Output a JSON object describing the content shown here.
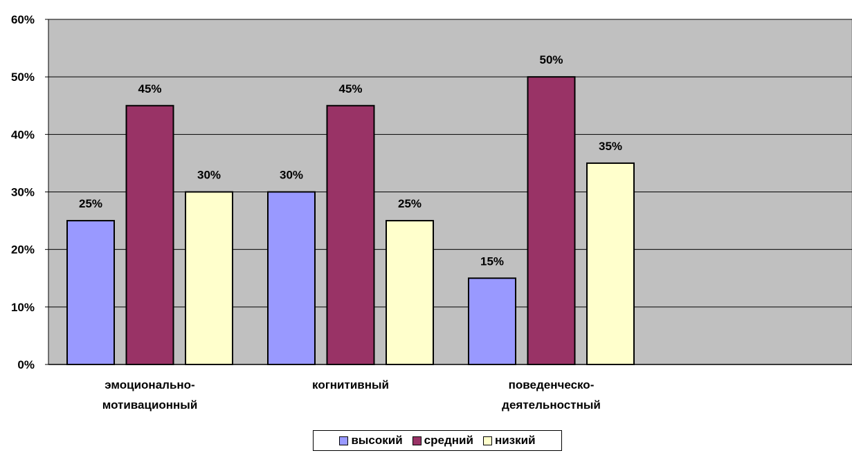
{
  "chart_data": {
    "type": "bar",
    "categories": [
      [
        "эмоционально-",
        "мотивационный"
      ],
      [
        "когнитивный"
      ],
      [
        "поведенческо-",
        "деятельностный"
      ]
    ],
    "series": [
      {
        "name": "высокий",
        "values": [
          25,
          30,
          15
        ],
        "color": "#9999ff"
      },
      {
        "name": "средний",
        "values": [
          45,
          45,
          50
        ],
        "color": "#993366"
      },
      {
        "name": "низкий",
        "values": [
          30,
          25,
          35
        ],
        "color": "#ffffcc"
      }
    ],
    "ylim": [
      0,
      60
    ],
    "yticks": [
      "0%",
      "10%",
      "20%",
      "30%",
      "40%",
      "50%",
      "60%"
    ],
    "value_suffix": "%",
    "grid": true,
    "plot_background": "#c0c0c0",
    "legend_position": "bottom",
    "title": "",
    "xlabel": "",
    "ylabel": ""
  }
}
